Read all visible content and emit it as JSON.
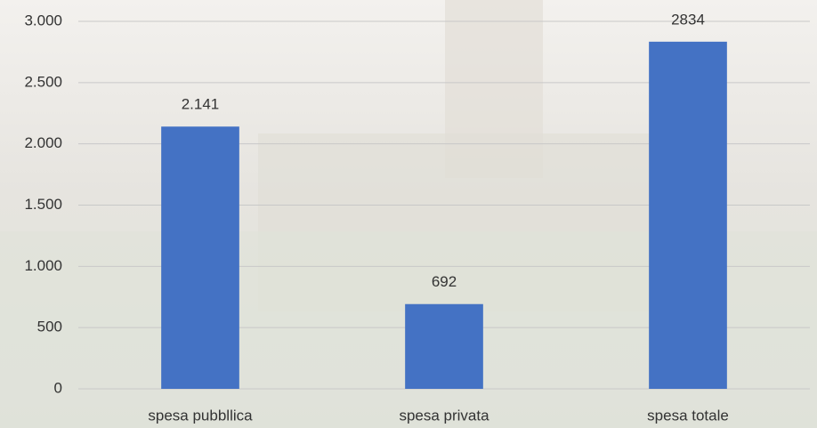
{
  "chart_data": {
    "type": "bar",
    "categories": [
      "spesa pubbllica",
      "spesa privata",
      "spesa totale"
    ],
    "values": [
      2141,
      692,
      2834
    ],
    "value_labels": [
      "2.141",
      "692",
      "2834"
    ],
    "color": "#4472c4",
    "ylim": [
      0,
      3000
    ],
    "yticks": [
      0,
      500,
      {
        "value": 1000,
        "label": "1.000"
      },
      {
        "value": 1500,
        "label": "1.500"
      },
      {
        "value": 2000,
        "label": "2.000"
      },
      {
        "value": 2500,
        "label": "2.500"
      },
      {
        "value": 3000,
        "label": "3.000"
      }
    ],
    "grid": true
  }
}
